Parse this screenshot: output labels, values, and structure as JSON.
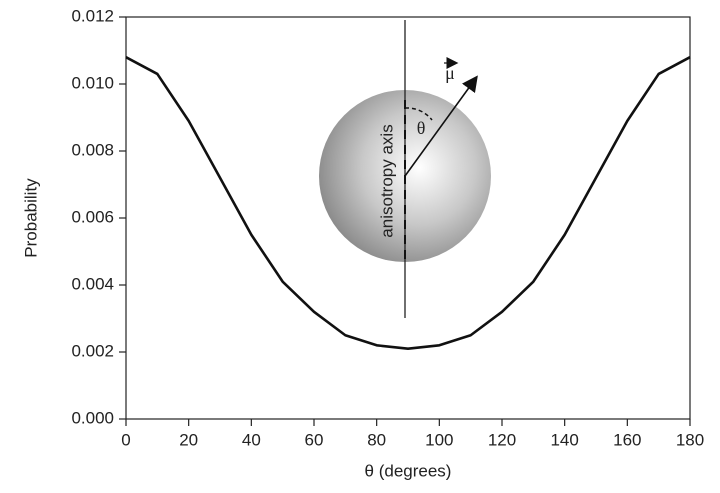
{
  "chart_data": {
    "type": "line",
    "x_label": "θ (degrees)",
    "y_label": "Probability",
    "x": [
      0,
      10,
      20,
      30,
      40,
      50,
      60,
      70,
      80,
      90,
      100,
      110,
      120,
      130,
      140,
      150,
      160,
      170,
      180
    ],
    "series": [
      {
        "color": "#111111",
        "values": [
          0.0108,
          0.0103,
          0.0089,
          0.0072,
          0.0055,
          0.0041,
          0.0032,
          0.0025,
          0.0022,
          0.0021,
          0.0022,
          0.0025,
          0.0032,
          0.0041,
          0.0055,
          0.0072,
          0.0089,
          0.0103,
          0.0108
        ]
      }
    ],
    "xlim": [
      0,
      180
    ],
    "xticks": [
      0,
      20,
      40,
      60,
      80,
      100,
      120,
      140,
      160,
      180
    ],
    "ylim": [
      0,
      0.012
    ],
    "yticks": [
      {
        "value": 0,
        "label": "0.000"
      },
      {
        "value": 0.002,
        "label": "0.002"
      },
      {
        "value": 0.004,
        "label": "0.004"
      },
      {
        "value": 0.006,
        "label": "0.006"
      },
      {
        "value": 0.008,
        "label": "0.008"
      },
      {
        "value": 0.01,
        "label": "0.010"
      },
      {
        "value": 0.012,
        "label": "0.012"
      }
    ],
    "annotations": [
      "anisotropy axis",
      "θ",
      "μ"
    ]
  }
}
